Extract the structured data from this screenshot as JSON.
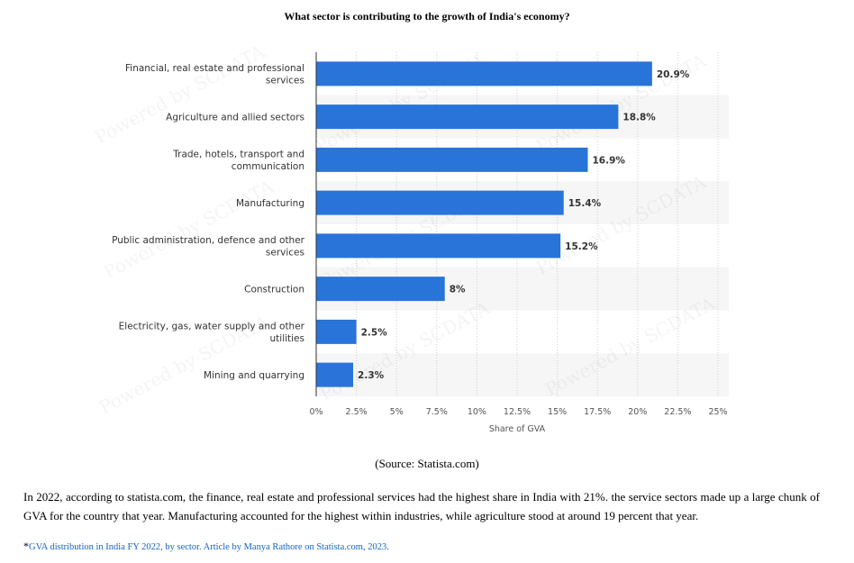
{
  "title": "What sector is contributing to the growth of India's economy?",
  "chart_data": {
    "type": "bar",
    "orientation": "horizontal",
    "categories": [
      [
        "Financial, real estate and professional",
        "services"
      ],
      [
        "Agriculture and allied sectors"
      ],
      [
        "Trade, hotels, transport and",
        "communication"
      ],
      [
        "Manufacturing"
      ],
      [
        "Public administration, defence and other",
        "services"
      ],
      [
        "Construction"
      ],
      [
        "Electricity, gas, water supply and other",
        "utilities"
      ],
      [
        "Mining and quarrying"
      ]
    ],
    "values": [
      20.9,
      18.8,
      16.9,
      15.4,
      15.2,
      8,
      2.5,
      2.3
    ],
    "value_labels": [
      "20.9%",
      "18.8%",
      "16.9%",
      "15.4%",
      "15.2%",
      "8%",
      "2.5%",
      "2.3%"
    ],
    "xlabel": "Share of GVA",
    "xlim": [
      0,
      25
    ],
    "xticks": [
      0,
      2.5,
      5,
      7.5,
      10,
      12.5,
      15,
      17.5,
      20,
      22.5,
      25
    ],
    "xtick_labels": [
      "0%",
      "2.5%",
      "5%",
      "7.5%",
      "10%",
      "12.5%",
      "15%",
      "17.5%",
      "20%",
      "22.5%",
      "25%"
    ],
    "bar_color": "#2874d9",
    "grid": "vertical dotted",
    "alternate_row_band_color": "#f6f6f6"
  },
  "watermark": "Powered by SCDATA",
  "source": "(Source: Statista.com)",
  "body_text": "In 2022, according to statista.com, the finance, real estate and professional services had the highest share in India with 21%. the service sectors made up a large chunk of GVA for the country that year. Manufacturing accounted for the highest within industries, while agriculture stood at around 19 percent that year.",
  "footnote": {
    "marker": "*",
    "text": "GVA distribution in India FY 2022, by sector. Article by Manya Rathore on Statista.com, 2023."
  }
}
